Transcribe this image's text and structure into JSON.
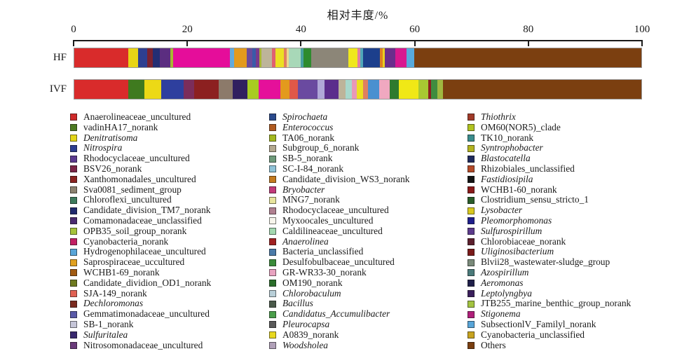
{
  "title": "相对丰度/%",
  "chart_data": {
    "type": "bar",
    "orientation": "horizontal-stacked",
    "title": "相对丰度/%",
    "xlabel": "相对丰度/%",
    "xlim": [
      0,
      100
    ],
    "x_ticks": [
      0,
      20,
      40,
      60,
      80,
      100
    ],
    "grid": false,
    "legend_position": "bottom",
    "categories": [
      "HF",
      "IVF"
    ],
    "bars": [
      {
        "label": "HF",
        "segments": [
          [
            9.5,
            "#d92b2b"
          ],
          [
            1.7,
            "#e8d416"
          ],
          [
            1.6,
            "#2e3f90"
          ],
          [
            1.1,
            "#7b2230"
          ],
          [
            1.2,
            "#232e73"
          ],
          [
            1.9,
            "#5b2d80"
          ],
          [
            0.4,
            "#a8b832"
          ],
          [
            10.0,
            "#e50d9a"
          ],
          [
            0.8,
            "#62aadc"
          ],
          [
            2.2,
            "#e39a1d"
          ],
          [
            1.0,
            "#6a4a9c"
          ],
          [
            0.6,
            "#3a5aa8"
          ],
          [
            0.6,
            "#7a3a8c"
          ],
          [
            0.4,
            "#a8b832"
          ],
          [
            1.9,
            "#bdb49a"
          ],
          [
            0.6,
            "#e06070"
          ],
          [
            1.5,
            "#ece022"
          ],
          [
            0.5,
            "#e08060"
          ],
          [
            0.4,
            "#ead890"
          ],
          [
            2.1,
            "#a8d8b8"
          ],
          [
            0.5,
            "#48a0a0"
          ],
          [
            1.3,
            "#2e8b2e"
          ],
          [
            6.6,
            "#8c8678"
          ],
          [
            1.6,
            "#f0e81c"
          ],
          [
            0.5,
            "#e080a0"
          ],
          [
            0.5,
            "#50a8b8"
          ],
          [
            2.9,
            "#1c3f8c"
          ],
          [
            0.5,
            "#e08020"
          ],
          [
            0.4,
            "#e8d020"
          ],
          [
            1.9,
            "#6a2d8c"
          ],
          [
            1.9,
            "#d81890"
          ],
          [
            1.4,
            "#58aadc"
          ],
          [
            40.0,
            "#7b3f10"
          ]
        ]
      },
      {
        "label": "IVF",
        "segments": [
          [
            9.5,
            "#d92b2b"
          ],
          [
            2.9,
            "#3f7a1f"
          ],
          [
            2.9,
            "#ecd916"
          ],
          [
            4.0,
            "#2e3f9e"
          ],
          [
            1.8,
            "#7b2d5b"
          ],
          [
            4.4,
            "#8c2020"
          ],
          [
            2.5,
            "#8c7a6a"
          ],
          [
            2.5,
            "#31205f"
          ],
          [
            2.0,
            "#a8cc20"
          ],
          [
            3.8,
            "#e5109a"
          ],
          [
            1.6,
            "#e39a1d"
          ],
          [
            1.6,
            "#e05848"
          ],
          [
            3.4,
            "#6a4aa0"
          ],
          [
            1.2,
            "#b0a8d8"
          ],
          [
            2.5,
            "#5b2d8c"
          ],
          [
            1.2,
            "#bdb49a"
          ],
          [
            1.2,
            "#a8d8cc"
          ],
          [
            0.8,
            "#e898b8"
          ],
          [
            1.2,
            "#ece022"
          ],
          [
            0.8,
            "#e08060"
          ],
          [
            2.0,
            "#4a90d0"
          ],
          [
            1.8,
            "#f0a8c0"
          ],
          [
            1.6,
            "#2e7a2e"
          ],
          [
            3.5,
            "#f0e816"
          ],
          [
            1.8,
            "#a8c832"
          ],
          [
            0.5,
            "#8c2020"
          ],
          [
            1.0,
            "#3f8c3f"
          ],
          [
            1.0,
            "#a0b840"
          ],
          [
            35.0,
            "#7b3f10"
          ]
        ]
      }
    ]
  },
  "legend": {
    "columns": [
      [
        {
          "label": "Anaerolineaceae_uncultured",
          "color": "#cf2a2a",
          "italic": false
        },
        {
          "label": "vadinHA17_norank",
          "color": "#4c7a22",
          "italic": false
        },
        {
          "label": "Denitratisoma",
          "color": "#e3d518",
          "italic": true
        },
        {
          "label": "Nitrospira",
          "color": "#2d3d8f",
          "italic": true
        },
        {
          "label": "Rhodocyclaceae_uncultured",
          "color": "#5b3a8f",
          "italic": false
        },
        {
          "label": "BSV26_norank",
          "color": "#7a2547",
          "italic": false
        },
        {
          "label": "Xanthomonadales_uncultured",
          "color": "#8a2320",
          "italic": false
        },
        {
          "label": "Sva0081_sediment_group",
          "color": "#8c8270",
          "italic": false
        },
        {
          "label": "Chloroflexi_uncultured",
          "color": "#3d7a5c",
          "italic": false
        },
        {
          "label": "Candidate_division_TM7_norank",
          "color": "#202a6e",
          "italic": false
        },
        {
          "label": "Comamonadaceae_unclassified",
          "color": "#4a2a70",
          "italic": false
        },
        {
          "label": "OPB35_soil_group_norank",
          "color": "#a5c33a",
          "italic": false
        },
        {
          "label": "Cyanobacteria_norank",
          "color": "#c21f63",
          "italic": false
        },
        {
          "label": "Hydrogenophilaceae_uncultured",
          "color": "#58a5d8",
          "italic": false
        },
        {
          "label": "Saprospiraceae_uccultured",
          "color": "#e0a01f",
          "italic": false
        },
        {
          "label": "WCHB1-69_norank",
          "color": "#a05a12",
          "italic": false
        },
        {
          "label": "Candidate_dividion_OD1_norank",
          "color": "#6e7a1f",
          "italic": false
        },
        {
          "label": "SJA-149_norank",
          "color": "#e06052",
          "italic": false
        },
        {
          "label": "Dechloromonas",
          "color": "#7a2a1f",
          "italic": true
        },
        {
          "label": "Gemmatimonadaceae_uncultured",
          "color": "#5a5aa8",
          "italic": false
        },
        {
          "label": "SB-1_norank",
          "color": "#c5c5d8",
          "italic": false
        },
        {
          "label": "Sulfuritalea",
          "color": "#38276e",
          "italic": true
        },
        {
          "label": "Nitrosomonadaceae_uncultured",
          "color": "#6a3a7a",
          "italic": false
        }
      ],
      [
        {
          "label": "Spirochaeta",
          "color": "#2a4a8c",
          "italic": true
        },
        {
          "label": "Enterococcus",
          "color": "#b05a1f",
          "italic": true
        },
        {
          "label": "TA06_norank",
          "color": "#a3b81f",
          "italic": false
        },
        {
          "label": "Subgroup_6_norank",
          "color": "#b3a88f",
          "italic": false
        },
        {
          "label": "SB-5_norank",
          "color": "#6e9a7a",
          "italic": false
        },
        {
          "label": "SC-I-84_norank",
          "color": "#8fc3d8",
          "italic": false
        },
        {
          "label": "Candidate_division_WS3_norank",
          "color": "#c37a1f",
          "italic": false
        },
        {
          "label": "Bryobacter",
          "color": "#c23a7a",
          "italic": true
        },
        {
          "label": "MNG7_norank",
          "color": "#e8e59e",
          "italic": false
        },
        {
          "label": "Rhodocyclaceae_uncultured",
          "color": "#b08090",
          "italic": false
        },
        {
          "label": "Myxoocales_uncultured",
          "color": "#f7f5ec",
          "italic": false
        },
        {
          "label": "Caldilineaceae_uncultured",
          "color": "#a3d8b0",
          "italic": false
        },
        {
          "label": "Anaerolinea",
          "color": "#a02020",
          "italic": true
        },
        {
          "label": "Bacteria_unclassified",
          "color": "#4a7aa8",
          "italic": false
        },
        {
          "label": "Desulfobulbaceae_uncultured",
          "color": "#3a8c3a",
          "italic": false
        },
        {
          "label": "GR-WR33-30_norank",
          "color": "#e8a3c0",
          "italic": false
        },
        {
          "label": "OM190_norank",
          "color": "#2a6e2a",
          "italic": false
        },
        {
          "label": "Chlorobaculum",
          "color": "#b8cfd8",
          "italic": true
        },
        {
          "label": "Bacillus",
          "color": "#4a5a4a",
          "italic": true
        },
        {
          "label": "Candidatus_Accumulibacter",
          "color": "#4a9e4a",
          "italic": true
        },
        {
          "label": "Pleurocapsa",
          "color": "#5a5a5a",
          "italic": true
        },
        {
          "label": "A0839_norank",
          "color": "#e8d81f",
          "italic": false
        },
        {
          "label": "Woodsholea",
          "color": "#b0a0b8",
          "italic": true
        }
      ],
      [
        {
          "label": "Thiothrix",
          "color": "#a03a28",
          "italic": true
        },
        {
          "label": "OM60(NOR5)_clade",
          "color": "#b0c21f",
          "italic": false
        },
        {
          "label": "TK10_norank",
          "color": "#3a8c8c",
          "italic": false
        },
        {
          "label": "Syntrophobacter",
          "color": "#b3b31f",
          "italic": true
        },
        {
          "label": "Blastocatella",
          "color": "#1f2a5c",
          "italic": true
        },
        {
          "label": "Rhizobiales_unclassified",
          "color": "#b34a28",
          "italic": false
        },
        {
          "label": "Fastidiosipila",
          "color": "#141414",
          "italic": true
        },
        {
          "label": "WCHB1-60_norank",
          "color": "#8a1a1a",
          "italic": false
        },
        {
          "label": "Clostridium_sensu_stricto_1",
          "color": "#2a5c2a",
          "italic": false
        },
        {
          "label": "Lysobacter",
          "color": "#d8c81f",
          "italic": true
        },
        {
          "label": "Pleomorphomonas",
          "color": "#1f1f8c",
          "italic": true
        },
        {
          "label": "Sulfurospirillum",
          "color": "#5c3a8c",
          "italic": true
        },
        {
          "label": "Chlorobiaceae_norank",
          "color": "#5c1f2d",
          "italic": false
        },
        {
          "label": "Uliginosibacterium",
          "color": "#7a1a1a",
          "italic": true
        },
        {
          "label": "Blvii28_wastewater-sludge_group",
          "color": "#7a8a7a",
          "italic": false
        },
        {
          "label": "Azospirillum",
          "color": "#4a7a7a",
          "italic": true
        },
        {
          "label": "Aeromonas",
          "color": "#1f1f4a",
          "italic": true
        },
        {
          "label": "Leptolyngbya",
          "color": "#3a1f5c",
          "italic": true
        },
        {
          "label": "JTB255_marine_benthic_group_norank",
          "color": "#a3c340",
          "italic": false
        },
        {
          "label": "Stigonema",
          "color": "#b01f7a",
          "italic": true
        },
        {
          "label": "SubsectionlV_Familyl_norank",
          "color": "#58a5d8",
          "italic": false
        },
        {
          "label": "Cyanobacteria_unclassified",
          "color": "#c7a31f",
          "italic": false
        },
        {
          "label": "Others",
          "color": "#7a3f10",
          "italic": false
        }
      ]
    ]
  },
  "layout": {
    "legend_col_lefts": [
      100,
      384,
      667
    ],
    "bar_tops": [
      68,
      113
    ]
  }
}
